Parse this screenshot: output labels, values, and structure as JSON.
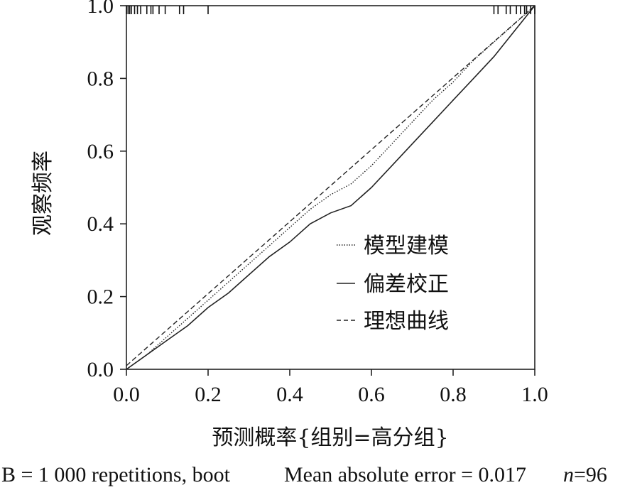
{
  "chart_data": {
    "type": "line",
    "xlabel": "预测概率{组别=高分组}",
    "ylabel": "观察频率",
    "xlim": [
      0.0,
      1.0
    ],
    "ylim": [
      0.0,
      1.0
    ],
    "xticks": [
      "0.0",
      "0.2",
      "0.4",
      "0.6",
      "0.8",
      "1.0"
    ],
    "yticks": [
      "0.0",
      "0.2",
      "0.4",
      "0.6",
      "0.8",
      "1.0"
    ],
    "grid": false,
    "legend_position": "right",
    "series": [
      {
        "name": "模型建模",
        "style": "dotted",
        "color": "#222222",
        "x": [
          0.0,
          0.05,
          0.1,
          0.15,
          0.2,
          0.25,
          0.3,
          0.35,
          0.4,
          0.45,
          0.5,
          0.55,
          0.6,
          0.65,
          0.7,
          0.75,
          0.8,
          0.85,
          0.9,
          0.95,
          1.0
        ],
        "y": [
          0.0,
          0.04,
          0.09,
          0.14,
          0.19,
          0.24,
          0.29,
          0.34,
          0.39,
          0.44,
          0.48,
          0.51,
          0.56,
          0.62,
          0.68,
          0.74,
          0.79,
          0.85,
          0.9,
          0.95,
          1.0
        ]
      },
      {
        "name": "偏差校正",
        "style": "solid",
        "color": "#222222",
        "x": [
          0.0,
          0.05,
          0.1,
          0.15,
          0.2,
          0.25,
          0.3,
          0.35,
          0.4,
          0.45,
          0.5,
          0.55,
          0.6,
          0.65,
          0.7,
          0.75,
          0.8,
          0.85,
          0.9,
          0.95,
          1.0
        ],
        "y": [
          0.0,
          0.04,
          0.08,
          0.12,
          0.17,
          0.21,
          0.26,
          0.31,
          0.35,
          0.4,
          0.43,
          0.45,
          0.5,
          0.56,
          0.62,
          0.68,
          0.74,
          0.8,
          0.86,
          0.93,
          1.0
        ]
      },
      {
        "name": "理想曲线",
        "style": "dashed",
        "color": "#222222",
        "x": [
          0.0,
          1.0
        ],
        "y": [
          0.01,
          1.0
        ]
      }
    ],
    "rug_ticks": [
      0.0,
      0.004,
      0.008,
      0.012,
      0.02,
      0.027,
      0.035,
      0.05,
      0.06,
      0.065,
      0.08,
      0.095,
      0.13,
      0.14,
      0.2,
      0.9,
      0.91,
      0.93,
      0.94,
      0.955,
      0.965,
      0.975,
      0.98,
      0.99,
      1.0
    ]
  },
  "footer": {
    "left": "B = 1 000 repetitions, boot",
    "right": "Mean absolute error = 0.017",
    "n_label": "n",
    "n_value": "=96"
  }
}
